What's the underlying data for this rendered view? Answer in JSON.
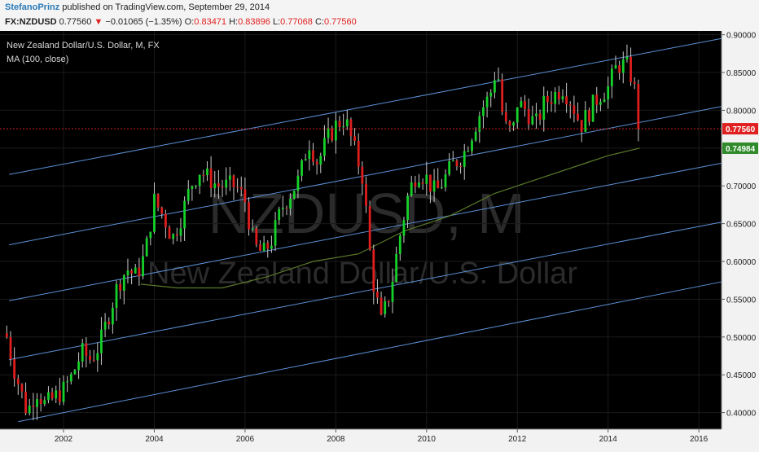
{
  "header": {
    "author": "StefanoPrinz",
    "published": " published on TradingView.com, September 29, 2014",
    "symbol": "FX:NZDUSD",
    "last": "0.77560",
    "change": "−0.01065 (−1.35%)",
    "o_label": "O:",
    "o_value": "0.83471",
    "h_label": "H:",
    "h_value": "0.83896",
    "l_label": "L:",
    "l_value": "0.77068",
    "c_label": "C:",
    "c_value": "0.77560"
  },
  "legend": {
    "title": "New Zealand Dollar/U.S. Dollar, M, FX",
    "indicator": "MA (100, close)"
  },
  "watermark": {
    "symbol": "NZDUSD, M",
    "name": "New Zealand Dollar/U.S. Dollar"
  },
  "colors": {
    "background": "#000000",
    "up": "#16d12a",
    "down": "#e01e1e",
    "channel": "#5b8fd4",
    "ma": "#5a7a2a",
    "price_line": "#d02020",
    "price_tag": "#e02020",
    "ma_tag": "#2f8a2a"
  },
  "chart_data": {
    "type": "candlestick",
    "title": "New Zealand Dollar/U.S. Dollar, M, FX",
    "x_range": [
      2000.6,
      2016.5
    ],
    "y_range": [
      0.378,
      0.905
    ],
    "x_ticks": [
      "2002",
      "2004",
      "2006",
      "2008",
      "2010",
      "2012",
      "2014",
      "2016"
    ],
    "y_ticks": [
      "0.90000",
      "0.85000",
      "0.80000",
      "0.75000",
      "0.70000",
      "0.65000",
      "0.60000",
      "0.55000",
      "0.50000",
      "0.45000",
      "0.40000"
    ],
    "last_price": "0.77560",
    "ma_value": "0.74984",
    "price_series": [
      [
        2000.75,
        0.5
      ],
      [
        2000.9,
        0.46
      ],
      [
        2001.0,
        0.44
      ],
      [
        2001.2,
        0.4
      ],
      [
        2001.4,
        0.43
      ],
      [
        2001.6,
        0.41
      ],
      [
        2001.8,
        0.42
      ],
      [
        2002.0,
        0.43
      ],
      [
        2002.2,
        0.45
      ],
      [
        2002.4,
        0.48
      ],
      [
        2002.6,
        0.47
      ],
      [
        2002.8,
        0.49
      ],
      [
        2003.0,
        0.53
      ],
      [
        2003.2,
        0.57
      ],
      [
        2003.4,
        0.59
      ],
      [
        2003.6,
        0.58
      ],
      [
        2003.8,
        0.61
      ],
      [
        2004.0,
        0.68
      ],
      [
        2004.2,
        0.66
      ],
      [
        2004.4,
        0.63
      ],
      [
        2004.6,
        0.66
      ],
      [
        2004.8,
        0.7
      ],
      [
        2005.0,
        0.72
      ],
      [
        2005.2,
        0.71
      ],
      [
        2005.4,
        0.7
      ],
      [
        2005.6,
        0.7
      ],
      [
        2005.8,
        0.7
      ],
      [
        2006.0,
        0.68
      ],
      [
        2006.2,
        0.62
      ],
      [
        2006.4,
        0.61
      ],
      [
        2006.6,
        0.63
      ],
      [
        2006.8,
        0.67
      ],
      [
        2007.0,
        0.69
      ],
      [
        2007.2,
        0.71
      ],
      [
        2007.4,
        0.76
      ],
      [
        2007.6,
        0.73
      ],
      [
        2007.8,
        0.76
      ],
      [
        2008.0,
        0.78
      ],
      [
        2008.2,
        0.79
      ],
      [
        2008.4,
        0.75
      ],
      [
        2008.6,
        0.71
      ],
      [
        2008.8,
        0.58
      ],
      [
        2009.0,
        0.52
      ],
      [
        2009.2,
        0.56
      ],
      [
        2009.4,
        0.63
      ],
      [
        2009.6,
        0.69
      ],
      [
        2009.8,
        0.72
      ],
      [
        2010.0,
        0.71
      ],
      [
        2010.2,
        0.69
      ],
      [
        2010.4,
        0.71
      ],
      [
        2010.6,
        0.73
      ],
      [
        2010.8,
        0.74
      ],
      [
        2011.0,
        0.77
      ],
      [
        2011.2,
        0.8
      ],
      [
        2011.4,
        0.82
      ],
      [
        2011.55,
        0.86
      ],
      [
        2011.7,
        0.78
      ],
      [
        2011.9,
        0.77
      ],
      [
        2012.0,
        0.81
      ],
      [
        2012.2,
        0.8
      ],
      [
        2012.4,
        0.78
      ],
      [
        2012.6,
        0.81
      ],
      [
        2012.8,
        0.82
      ],
      [
        2013.0,
        0.83
      ],
      [
        2013.2,
        0.81
      ],
      [
        2013.4,
        0.78
      ],
      [
        2013.6,
        0.8
      ],
      [
        2013.8,
        0.82
      ],
      [
        2014.0,
        0.83
      ],
      [
        2014.2,
        0.86
      ],
      [
        2014.4,
        0.86
      ],
      [
        2014.55,
        0.84
      ],
      [
        2014.7,
        0.78
      ]
    ],
    "ma_series": [
      [
        2003.7,
        0.57
      ],
      [
        2004.5,
        0.565
      ],
      [
        2005.5,
        0.565
      ],
      [
        2006.5,
        0.58
      ],
      [
        2007.5,
        0.6
      ],
      [
        2008.5,
        0.61
      ],
      [
        2009.5,
        0.64
      ],
      [
        2010.5,
        0.66
      ],
      [
        2011.5,
        0.69
      ],
      [
        2012.5,
        0.71
      ],
      [
        2013.5,
        0.73
      ],
      [
        2014.0,
        0.74
      ],
      [
        2014.7,
        0.75
      ]
    ],
    "channel_lines": [
      [
        [
          2000.8,
          0.715
        ],
        [
          2016.5,
          0.895
        ]
      ],
      [
        [
          2000.8,
          0.622
        ],
        [
          2016.5,
          0.805
        ]
      ],
      [
        [
          2000.8,
          0.548
        ],
        [
          2016.5,
          0.73
        ]
      ],
      [
        [
          2000.8,
          0.47
        ],
        [
          2016.5,
          0.652
        ]
      ],
      [
        [
          2001.0,
          0.388
        ],
        [
          2016.5,
          0.573
        ]
      ]
    ]
  }
}
